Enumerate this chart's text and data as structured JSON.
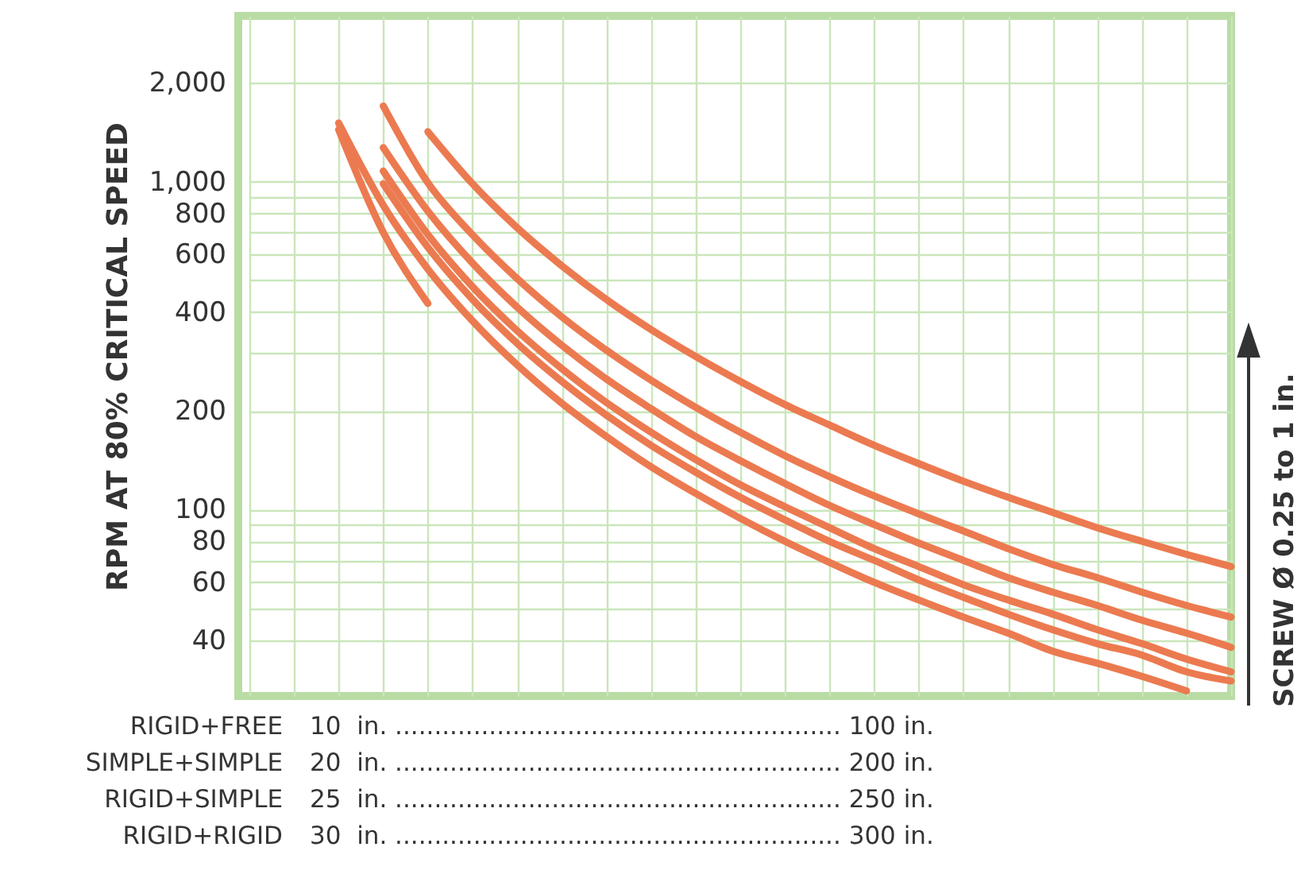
{
  "chart_data": {
    "type": "line",
    "ylabel": "RPM AT 80% CRITICAL SPEED",
    "log": "y",
    "grid": true,
    "marker": "none",
    "line_style": "solid",
    "categories": [
      null,
      null,
      null,
      null,
      null,
      null,
      null,
      null,
      null,
      null,
      null,
      null,
      null,
      null,
      null,
      null,
      null,
      null,
      null,
      null,
      null,
      null,
      null
    ],
    "ylim": [
      27,
      3200
    ],
    "yticks": [
      40,
      {
        "value": 50,
        "label": null
      },
      60,
      {
        "value": 70,
        "label": null
      },
      80,
      {
        "value": 90,
        "label": null
      },
      100,
      200,
      {
        "value": 300,
        "label": null
      },
      400,
      {
        "value": 500,
        "label": null
      },
      600,
      {
        "value": 700,
        "label": null
      },
      800,
      {
        "value": 900,
        "label": null
      },
      {
        "value": 1000,
        "label": "1,000"
      },
      {
        "value": 2000,
        "label": "2,000"
      }
    ],
    "series": [
      {
        "color": "#ec7a50",
        "values": [
          null,
          null,
          1440,
          700,
          425,
          null,
          null,
          null,
          null,
          null,
          null,
          null,
          null,
          null,
          null,
          null,
          null,
          null,
          null,
          null,
          null,
          null,
          null
        ]
      },
      {
        "color": "#ec7a50",
        "values": [
          null,
          null,
          1508,
          847,
          541,
          376,
          276,
          211,
          167,
          135,
          112,
          94,
          80,
          69,
          60,
          53,
          47,
          42,
          37,
          34,
          31,
          28,
          null
        ]
      },
      {
        "color": "#ec7a50",
        "values": [
          null,
          null,
          null,
          985,
          630,
          437,
          321,
          246,
          194,
          157,
          130,
          109,
          93,
          80,
          70,
          61,
          54,
          48,
          43,
          39,
          36,
          32,
          30
        ]
      },
      {
        "color": "#ec7a50",
        "values": [
          null,
          null,
          null,
          1077,
          689,
          478,
          351,
          269,
          212,
          172,
          142,
          119,
          102,
          88,
          76,
          67,
          59,
          53,
          48,
          43,
          39,
          35,
          32
        ]
      },
      {
        "color": "#ec7a50",
        "values": [
          null,
          null,
          null,
          1270,
          812,
          564,
          414,
          317,
          250,
          203,
          167,
          141,
          120,
          103,
          90,
          79,
          70,
          62,
          56,
          51,
          46,
          42,
          38
        ]
      },
      {
        "color": "#ec7a50",
        "values": [
          null,
          null,
          null,
          1700,
          992,
          688,
          506,
          387,
          306,
          248,
          205,
          172,
          146,
          126,
          110,
          97,
          86,
          76,
          68,
          62,
          56,
          51,
          47
        ]
      },
      {
        "color": "#ec7a50",
        "values": [
          null,
          null,
          null,
          null,
          1419,
          985,
          723,
          554,
          437,
          354,
          293,
          246,
          209,
          181,
          157,
          138,
          122,
          109,
          98,
          88,
          80,
          73,
          67
        ]
      }
    ],
    "annotations": [
      "RIGID+FREE  10  in. ......................................................... 100 in.",
      "SIMPLE+SIMPLE  20  in. ......................................................... 200 in.",
      "RIGID+SIMPLE  25  in. ......................................................... 250 in.",
      "RIGID+RIGID  30  in. ......................................................... 300 in.",
      "SCREW Ø 0.25 to 1 in."
    ]
  }
}
